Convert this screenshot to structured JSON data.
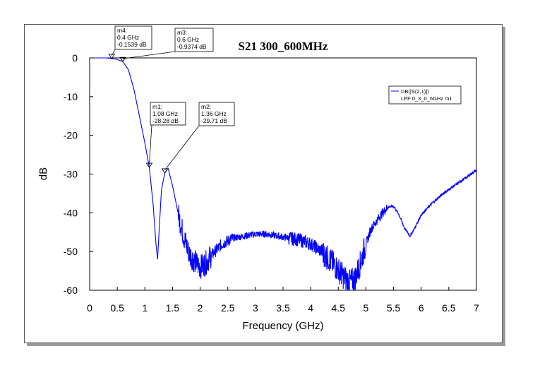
{
  "chart_data": {
    "type": "line",
    "title": "S21 300_600MHz",
    "xlabel": "Frequency (GHz)",
    "ylabel": "dB",
    "xlim": [
      0,
      7
    ],
    "ylim": [
      -60,
      0
    ],
    "xticks": [
      "0",
      "0.5",
      "1",
      "1.5",
      "2",
      "2.5",
      "3",
      "3.5",
      "4",
      "4.5",
      "5",
      "5.5",
      "6",
      "6.5",
      "7"
    ],
    "yticks": [
      "0",
      "-10",
      "-20",
      "-30",
      "-40",
      "-50",
      "-60"
    ],
    "grid": false,
    "legend_placement": "top-right",
    "legend": {
      "line1": "DB(|S(2,1)|)",
      "line2": "LPF 0_3_0_6GHz m1"
    },
    "colors": {
      "series": "#0000ff"
    },
    "series": [
      {
        "name": "DB(|S(2,1)|)",
        "x": [
          0.1,
          0.3,
          0.4,
          0.5,
          0.6,
          0.7,
          0.8,
          0.9,
          1.0,
          1.08,
          1.15,
          1.2,
          1.23,
          1.26,
          1.3,
          1.36,
          1.42,
          1.5,
          1.6,
          1.7,
          1.8,
          1.9,
          2.0,
          2.1,
          2.2,
          2.4,
          2.6,
          2.8,
          3.0,
          3.2,
          3.4,
          3.6,
          3.8,
          4.0,
          4.2,
          4.4,
          4.6,
          4.7,
          4.8,
          4.9,
          5.0,
          5.1,
          5.2,
          5.3,
          5.4,
          5.5,
          5.6,
          5.7,
          5.8,
          5.9,
          6.0,
          6.2,
          6.4,
          6.6,
          6.8,
          7.0
        ],
        "y": [
          0,
          0,
          -0.15,
          -0.4,
          -0.94,
          -3,
          -8,
          -15,
          -22,
          -28.28,
          -38,
          -48,
          -52,
          -44,
          -34,
          -29.71,
          -28.5,
          -33,
          -40,
          -46,
          -50.5,
          -52.5,
          -54,
          -53,
          -51,
          -48,
          -46.5,
          -46,
          -45.5,
          -45.5,
          -46,
          -46.5,
          -47,
          -48,
          -50,
          -53,
          -56.5,
          -58,
          -57,
          -53,
          -48,
          -44,
          -42,
          -40,
          -38.5,
          -38.3,
          -40.5,
          -44,
          -46,
          -43.5,
          -40.5,
          -37.5,
          -35,
          -33,
          -31,
          -29
        ]
      }
    ],
    "markers": [
      {
        "id": "m1",
        "freq": "1.08 GHz",
        "value": "-28.28 dB",
        "x": 1.08,
        "y": -28.28
      },
      {
        "id": "m2",
        "freq": "1.36 GHz",
        "value": "-29.71 dB",
        "x": 1.36,
        "y": -29.71
      },
      {
        "id": "m3",
        "freq": "0.6 GHz",
        "value": "-0.9374 dB",
        "x": 0.6,
        "y": -0.9374
      },
      {
        "id": "m4",
        "freq": "0.4 GHz",
        "value": "-0.1539 dB",
        "x": 0.4,
        "y": -0.1539
      }
    ]
  }
}
